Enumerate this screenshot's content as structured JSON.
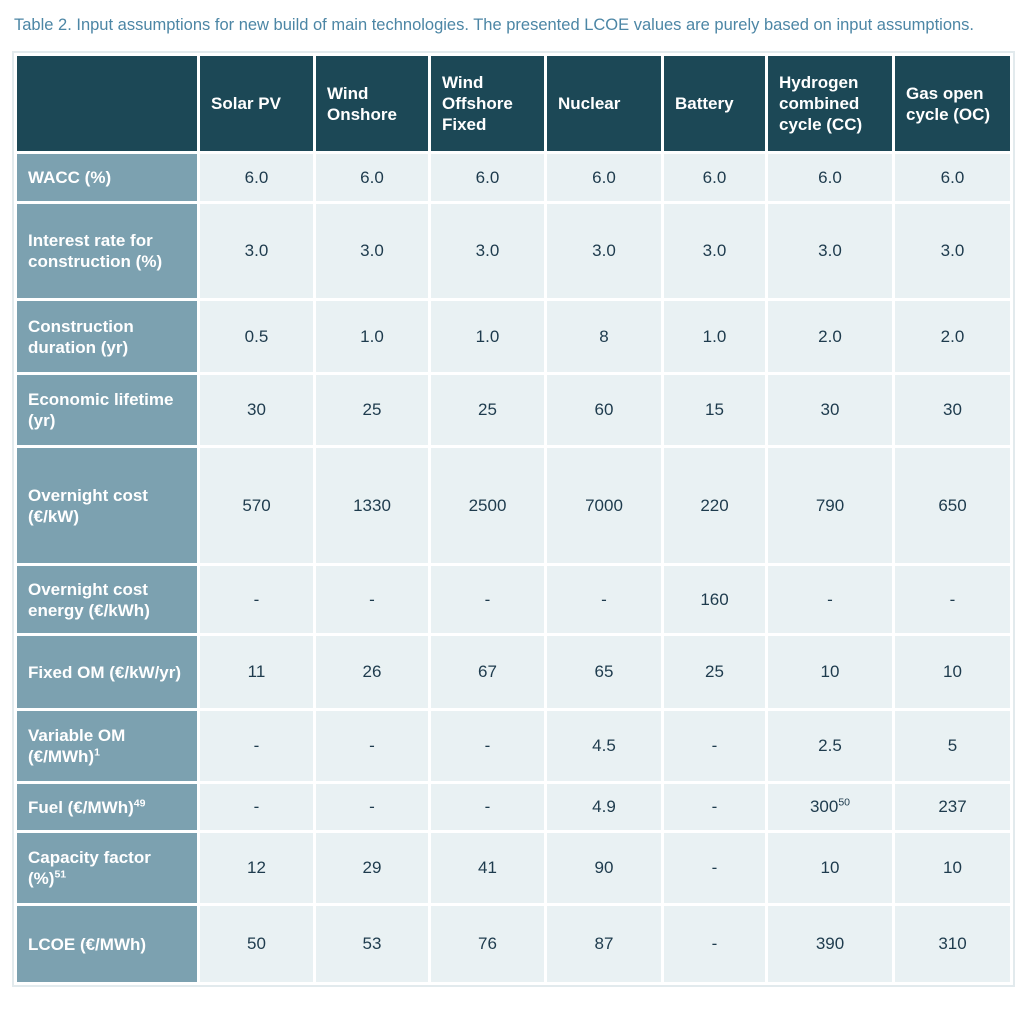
{
  "caption": "Table 2. Input assumptions for new build of main technologies. The presented LCOE values are purely based on input assumptions.",
  "colors": {
    "header_bg": "#1c4856",
    "row_header_bg": "#7ca1b0",
    "cell_bg": "#e9f1f3",
    "cell_text": "#1e3b4d",
    "caption_text": "#4c86a5",
    "outer_border": "#e2eaed"
  },
  "table": {
    "corner_label": "",
    "columns": [
      "Solar PV",
      "Wind Onshore",
      "Wind Offshore Fixed",
      "Nuclear",
      "Battery",
      "Hydrogen combined cycle (CC)",
      "Gas open cycle (OC)"
    ],
    "rows": [
      {
        "label": "WACC (%)",
        "label_sup": "",
        "values": [
          "6.0",
          "6.0",
          "6.0",
          "6.0",
          "6.0",
          "6.0",
          "6.0"
        ]
      },
      {
        "label": "Interest rate for construction (%)",
        "label_sup": "",
        "values": [
          "3.0",
          "3.0",
          "3.0",
          "3.0",
          "3.0",
          "3.0",
          "3.0"
        ]
      },
      {
        "label": "Construction duration (yr)",
        "label_sup": "",
        "values": [
          "0.5",
          "1.0",
          "1.0",
          "8",
          "1.0",
          "2.0",
          "2.0"
        ]
      },
      {
        "label": "Economic lifetime (yr)",
        "label_sup": "",
        "values": [
          "30",
          "25",
          "25",
          "60",
          "15",
          "30",
          "30"
        ]
      },
      {
        "label": "Overnight cost (€/kW)",
        "label_sup": "",
        "values": [
          "570",
          "1330",
          "2500",
          "7000",
          "220",
          "790",
          "650"
        ]
      },
      {
        "label": "Overnight cost energy (€/kWh)",
        "label_sup": "",
        "values": [
          "-",
          "-",
          "-",
          "-",
          "160",
          "-",
          "-"
        ]
      },
      {
        "label": "Fixed OM (€/kW/yr)",
        "label_sup": "",
        "values": [
          "11",
          "26",
          "67",
          "65",
          "25",
          "10",
          "10"
        ]
      },
      {
        "label": "Variable OM (€/MWh)",
        "label_sup": "1",
        "values": [
          "-",
          "-",
          "-",
          "4.5",
          "-",
          "2.5",
          "5"
        ]
      },
      {
        "label": "Fuel (€/MWh)",
        "label_sup": "49",
        "values": [
          "-",
          "-",
          "-",
          "4.9",
          "-",
          {
            "text": "300",
            "sup": "50"
          },
          "237"
        ]
      },
      {
        "label": "Capacity factor (%)",
        "label_sup": "51",
        "values": [
          "12",
          "29",
          "41",
          "90",
          "-",
          "10",
          "10"
        ]
      },
      {
        "label": "LCOE (€/MWh)",
        "label_sup": "",
        "values": [
          "50",
          "53",
          "76",
          "87",
          "-",
          "390",
          "310"
        ]
      }
    ]
  }
}
